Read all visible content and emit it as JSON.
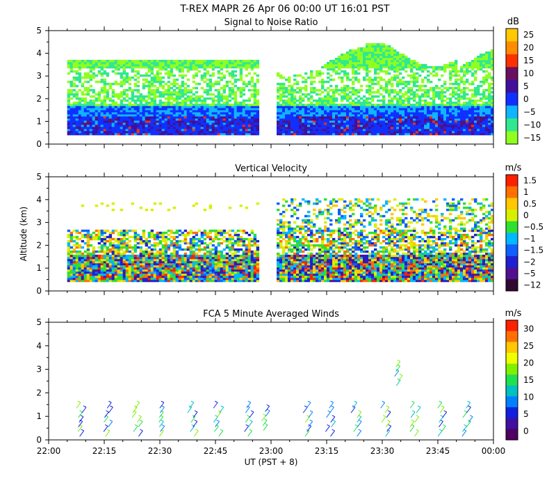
{
  "title": "T-REX  MAPR 26 Apr 06  00:00 UT  16:01  PST",
  "chart_data": [
    {
      "type": "heatmap",
      "title": "Signal to Noise Ratio",
      "ylabel": "",
      "ylim": [
        0,
        5
      ],
      "yticks": [
        "0",
        "1",
        "2",
        "3",
        "4",
        "5"
      ],
      "colorbar": {
        "unit": "dB",
        "labels": [
          "25",
          "20",
          "15",
          "10",
          "5",
          "0",
          "−5",
          "−10",
          "−15"
        ],
        "colors": [
          "#ffc800",
          "#ff8c00",
          "#ff3000",
          "#6a1060",
          "#40109a",
          "#1030ff",
          "#10b4ff",
          "#30e890",
          "#90ff20"
        ]
      }
    },
    {
      "type": "heatmap",
      "title": "Vertical Velocity",
      "ylabel": "Altitude (km)",
      "ylim": [
        0,
        5
      ],
      "yticks": [
        "0",
        "1",
        "2",
        "3",
        "4",
        "5"
      ],
      "colorbar": {
        "unit": "m/s",
        "labels": [
          "1.5",
          "1",
          "0.5",
          "0",
          "−0.5",
          "−1",
          "−1.5",
          "−2",
          "−5",
          "−12"
        ],
        "colors": [
          "#ff2000",
          "#ff7000",
          "#ffc800",
          "#d8f000",
          "#30e030",
          "#00b8ff",
          "#1060ff",
          "#2020d0",
          "#501090",
          "#300830"
        ]
      }
    },
    {
      "type": "scatter",
      "title": "FCA 5 Minute Averaged Winds",
      "ylabel": "",
      "ylim": [
        0,
        5
      ],
      "yticks": [
        "0",
        "1",
        "2",
        "3",
        "4",
        "5"
      ],
      "colorbar": {
        "unit": "m/s",
        "labels": [
          "30",
          "25",
          "20",
          "15",
          "10",
          "5",
          "0"
        ],
        "colors": [
          "#ff2000",
          "#ff7000",
          "#ffc800",
          "#f0ff00",
          "#80f000",
          "#20e050",
          "#00c0c0",
          "#0080ff",
          "#1020e0",
          "#4010a0",
          "#500060"
        ]
      },
      "wind_times": [
        "22:08",
        "22:15",
        "22:23",
        "22:30",
        "22:38",
        "22:45",
        "22:53",
        "22:58",
        "23:09",
        "23:15",
        "23:22",
        "23:30",
        "23:33",
        "23:38",
        "23:45",
        "23:52"
      ]
    }
  ],
  "xaxis": {
    "ticks": [
      "22:00",
      "22:15",
      "22:30",
      "22:45",
      "23:00",
      "23:15",
      "23:30",
      "23:45",
      "00:00"
    ],
    "label": "UT  (PST + 8)"
  }
}
